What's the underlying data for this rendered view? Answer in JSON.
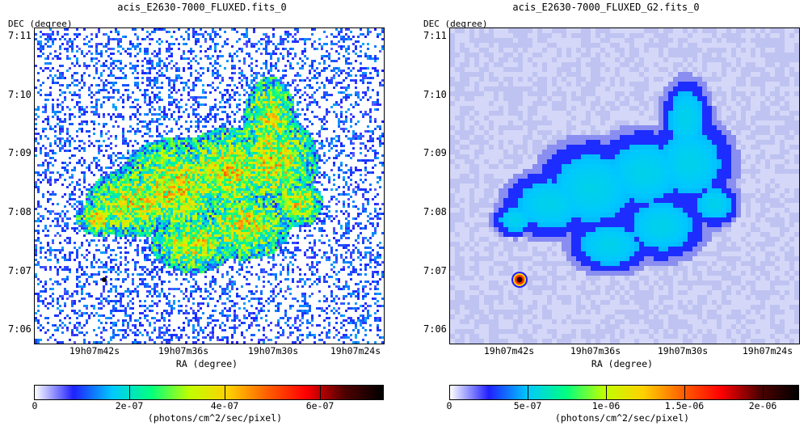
{
  "panels": [
    {
      "title": "acis_E2630-7000_FLUXED.fits_0",
      "y_axis_label": "DEC (degree)",
      "x_axis_label": "RA (degree)",
      "y_ticks": [
        "7:11",
        "7:10",
        "7:09",
        "7:08",
        "7:07",
        "7:06"
      ],
      "x_ticks": [
        "19h07m42s",
        "19h07m36s",
        "19h07m30s",
        "19h07m24s"
      ],
      "colorbar_ticks": [
        "0",
        "2e-07",
        "4e-07",
        "6e-07"
      ],
      "colorbar_unit": "(photons/cm^2/sec/pixel)",
      "image_style": "noisy-pixel-map"
    },
    {
      "title": "acis_E2630-7000_FLUXED_G2.fits_0",
      "y_axis_label": "DEC (degree)",
      "x_axis_label": "RA (degree)",
      "y_ticks": [
        "7:11",
        "7:10",
        "7:09",
        "7:08",
        "7:07",
        "7:06"
      ],
      "x_ticks": [
        "19h07m42s",
        "19h07m36s",
        "19h07m30s",
        "19h07m24s"
      ],
      "colorbar_ticks": [
        "0",
        "5e-07",
        "1e-06",
        "1.5e-06",
        "2e-06"
      ],
      "colorbar_unit": "(photons/cm^2/sec/pixel)",
      "image_style": "gaussian-smoothed-map"
    }
  ],
  "colormap": [
    "#ffffff",
    "#2020ff",
    "#00c8ff",
    "#00ff80",
    "#c0ff00",
    "#ffd000",
    "#ff6000",
    "#ff0000",
    "#500000",
    "#000000"
  ]
}
